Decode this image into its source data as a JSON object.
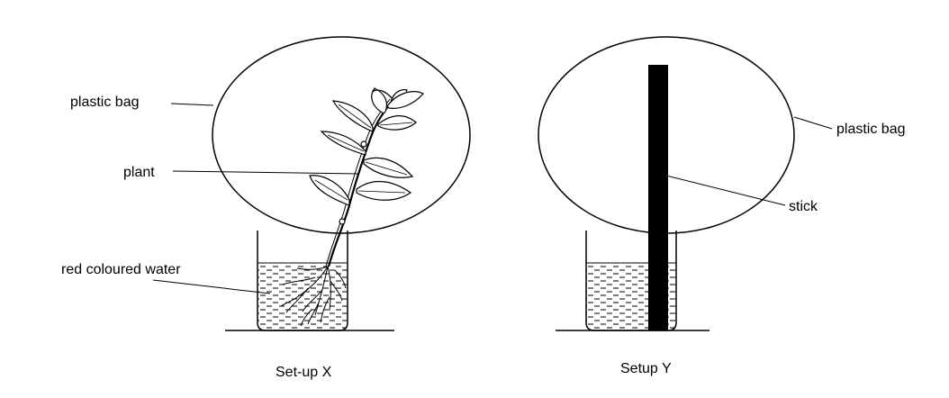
{
  "setup_x": {
    "caption": "Set-up X",
    "labels": {
      "bag": "plastic bag",
      "plant": "plant",
      "water": "red coloured water"
    }
  },
  "setup_y": {
    "caption": "Setup Y",
    "labels": {
      "bag": "plastic bag",
      "stick": "stick"
    }
  }
}
